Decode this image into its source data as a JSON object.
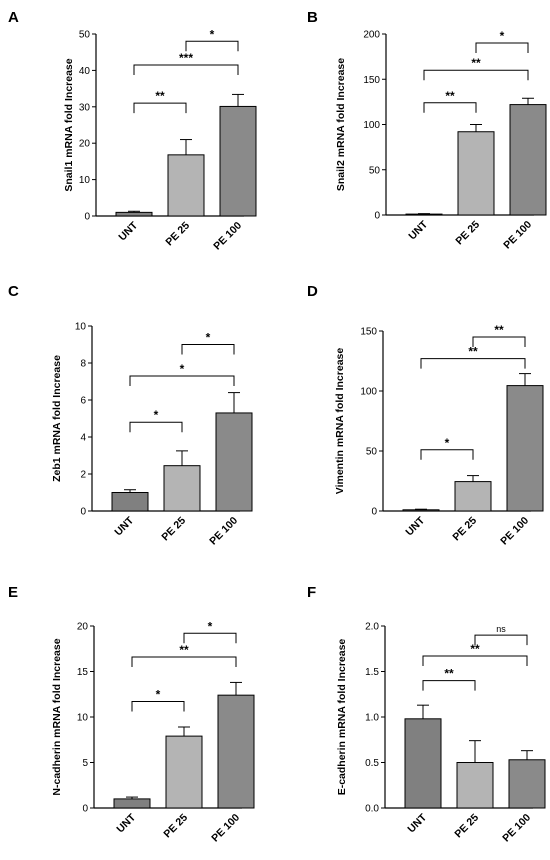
{
  "style": {
    "bar_colors": [
      "#808080",
      "#b4b4b4",
      "#8a8a8a"
    ],
    "axis_color": "#000000"
  },
  "chart_data": [
    {
      "panel_label": "A",
      "type": "bar",
      "categories": [
        "UNT",
        "PE 25",
        "PE 100"
      ],
      "values": [
        1.0,
        16.8,
        30.1
      ],
      "errors": [
        0.3,
        4.2,
        3.3
      ],
      "ylabel": "Snail1 mRNA fold Increase",
      "ylim": [
        0,
        50
      ],
      "yticks": [
        0,
        10,
        20,
        30,
        40,
        50
      ],
      "ytick_labels": [
        "0",
        "10",
        "20",
        "30",
        "40",
        "50"
      ],
      "significance": [
        {
          "from": 0,
          "to": 1,
          "label": "**",
          "level": 31
        },
        {
          "from": 0,
          "to": 2,
          "label": "***",
          "level": 41.5
        },
        {
          "from": 1,
          "to": 2,
          "label": "*",
          "level": 48
        }
      ]
    },
    {
      "panel_label": "B",
      "type": "bar",
      "categories": [
        "UNT",
        "PE 25",
        "PE 100"
      ],
      "values": [
        1.0,
        92,
        122
      ],
      "errors": [
        0.5,
        8,
        7
      ],
      "ylabel": "Snail2 mRNA fold Increase",
      "ylim": [
        0,
        200
      ],
      "yticks": [
        0,
        50,
        100,
        150,
        200
      ],
      "ytick_labels": [
        "0",
        "50",
        "100",
        "150",
        "200"
      ],
      "significance": [
        {
          "from": 0,
          "to": 1,
          "label": "**",
          "level": 124
        },
        {
          "from": 0,
          "to": 2,
          "label": "**",
          "level": 160
        },
        {
          "from": 1,
          "to": 2,
          "label": "*",
          "level": 190
        }
      ]
    },
    {
      "panel_label": "C",
      "type": "bar",
      "categories": [
        "UNT",
        "PE 25",
        "PE 100"
      ],
      "values": [
        1.0,
        2.45,
        5.3
      ],
      "errors": [
        0.15,
        0.8,
        1.1
      ],
      "ylabel": "Zeb1 mRNA fold Increase",
      "ylim": [
        0,
        10
      ],
      "yticks": [
        0,
        2,
        4,
        6,
        8,
        10
      ],
      "ytick_labels": [
        "0",
        "2",
        "4",
        "6",
        "8",
        "10"
      ],
      "significance": [
        {
          "from": 0,
          "to": 1,
          "label": "*",
          "level": 4.8
        },
        {
          "from": 0,
          "to": 2,
          "label": "*",
          "level": 7.3
        },
        {
          "from": 1,
          "to": 2,
          "label": "*",
          "level": 9.0
        }
      ]
    },
    {
      "panel_label": "D",
      "type": "bar",
      "categories": [
        "UNT",
        "PE 25",
        "PE 100"
      ],
      "values": [
        1.0,
        24.5,
        104.5
      ],
      "errors": [
        0.5,
        5,
        10
      ],
      "ylabel": "Vimentin mRNA fold Increase",
      "ylim": [
        0,
        150
      ],
      "yticks": [
        0,
        50,
        100,
        150
      ],
      "ytick_labels": [
        "0",
        "50",
        "100",
        "150"
      ],
      "significance": [
        {
          "from": 0,
          "to": 1,
          "label": "*",
          "level": 51
        },
        {
          "from": 0,
          "to": 2,
          "label": "**",
          "level": 127
        },
        {
          "from": 1,
          "to": 2,
          "label": "**",
          "level": 145
        }
      ]
    },
    {
      "panel_label": "E",
      "type": "bar",
      "categories": [
        "UNT",
        "PE 25",
        "PE 100"
      ],
      "values": [
        1.0,
        7.9,
        12.4
      ],
      "errors": [
        0.2,
        1.0,
        1.4
      ],
      "ylabel": "N-cadherin mRNA fold Increase",
      "ylim": [
        0,
        20
      ],
      "yticks": [
        0,
        5,
        10,
        15,
        20
      ],
      "ytick_labels": [
        "0",
        "5",
        "10",
        "15",
        "20"
      ],
      "significance": [
        {
          "from": 0,
          "to": 1,
          "label": "*",
          "level": 11.7
        },
        {
          "from": 0,
          "to": 2,
          "label": "**",
          "level": 16.6
        },
        {
          "from": 1,
          "to": 2,
          "label": "*",
          "level": 19.2
        }
      ]
    },
    {
      "panel_label": "F",
      "type": "bar",
      "categories": [
        "UNT",
        "PE 25",
        "PE 100"
      ],
      "values": [
        0.98,
        0.5,
        0.53
      ],
      "errors": [
        0.15,
        0.24,
        0.1
      ],
      "ylabel": "E-cadherin mRNA fold Increase",
      "ylim": [
        0,
        2.0
      ],
      "yticks": [
        0,
        0.5,
        1.0,
        1.5,
        2.0
      ],
      "ytick_labels": [
        "0.0",
        "0.5",
        "1.0",
        "1.5",
        "2.0"
      ],
      "significance": [
        {
          "from": 0,
          "to": 1,
          "label": "**",
          "level": 1.4
        },
        {
          "from": 0,
          "to": 2,
          "label": "**",
          "level": 1.67
        },
        {
          "from": 1,
          "to": 2,
          "label": "ns",
          "level": 1.9
        }
      ]
    }
  ]
}
